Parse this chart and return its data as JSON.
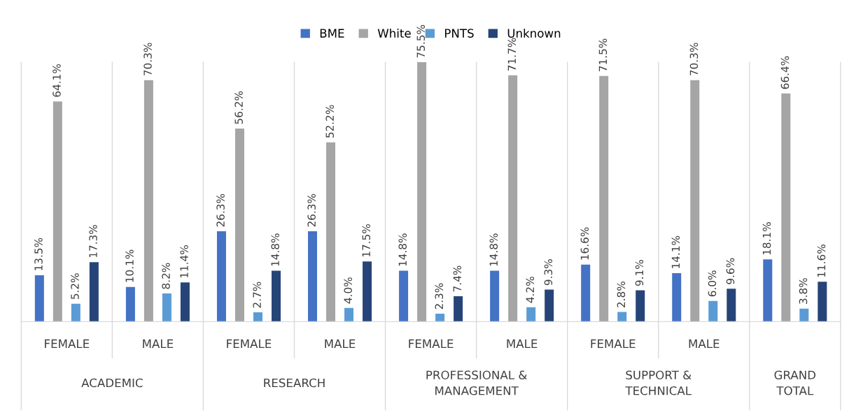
{
  "chart_data": {
    "type": "bar",
    "categories": [
      "FEMALE",
      "MALE",
      "FEMALE",
      "MALE",
      "FEMALE",
      "MALE",
      "FEMALE",
      "MALE",
      null
    ],
    "annotations": [
      "ACADEMIC",
      "RESEARCH",
      "PROFESSIONAL &\nMANAGEMENT",
      "SUPPORT &\nTECHNICAL",
      "GRAND\nTOTAL"
    ],
    "series": [
      {
        "name": "BME",
        "color": "#4472c4",
        "values": [
          13.5,
          10.1,
          26.3,
          26.3,
          14.8,
          14.8,
          16.6,
          14.1,
          18.1
        ],
        "value_labels": [
          "13.5%",
          "10.1%",
          "26.3%",
          "26.3%",
          "14.8%",
          "14.8%",
          "16.6%",
          "14.1%",
          "18.1%"
        ]
      },
      {
        "name": "White",
        "color": "#a5a5a5",
        "values": [
          64.1,
          70.3,
          56.2,
          52.2,
          75.5,
          71.7,
          71.5,
          70.3,
          66.4
        ],
        "value_labels": [
          "64.1%",
          "70.3%",
          "56.2%",
          "52.2%",
          "75.5%",
          "71.7%",
          "71.5%",
          "70.3%",
          "66.4%"
        ]
      },
      {
        "name": "PNTS",
        "color": "#5b9bd5",
        "values": [
          5.2,
          8.2,
          2.7,
          4.0,
          2.3,
          4.2,
          2.8,
          6.0,
          3.8
        ],
        "value_labels": [
          "5.2%",
          "8.2%",
          "2.7%",
          "4.0%",
          "2.3%",
          "4.2%",
          "2.8%",
          "6.0%",
          "3.8%"
        ]
      },
      {
        "name": "Unknown",
        "color": "#264478",
        "values": [
          17.3,
          11.4,
          14.8,
          17.5,
          7.4,
          9.3,
          9.1,
          9.6,
          11.6
        ],
        "value_labels": [
          "17.3%",
          "11.4%",
          "14.8%",
          "17.5%",
          "7.4%",
          "9.3%",
          "9.1%",
          "9.6%",
          "11.6%"
        ]
      }
    ],
    "legend": "top",
    "grid": false
  }
}
